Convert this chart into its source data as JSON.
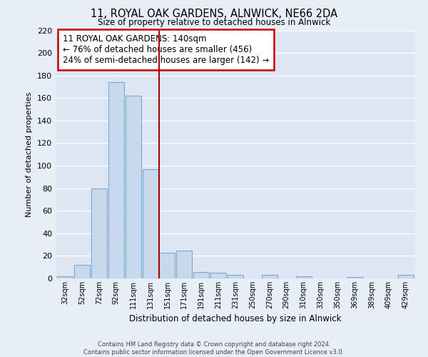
{
  "title": "11, ROYAL OAK GARDENS, ALNWICK, NE66 2DA",
  "subtitle": "Size of property relative to detached houses in Alnwick",
  "xlabel": "Distribution of detached houses by size in Alnwick",
  "ylabel": "Number of detached properties",
  "bar_labels": [
    "32sqm",
    "52sqm",
    "72sqm",
    "92sqm",
    "111sqm",
    "131sqm",
    "151sqm",
    "171sqm",
    "191sqm",
    "211sqm",
    "231sqm",
    "250sqm",
    "270sqm",
    "290sqm",
    "310sqm",
    "330sqm",
    "350sqm",
    "369sqm",
    "389sqm",
    "409sqm",
    "429sqm"
  ],
  "bar_values": [
    2,
    12,
    80,
    174,
    162,
    97,
    23,
    25,
    6,
    5,
    3,
    0,
    3,
    0,
    2,
    0,
    0,
    1,
    0,
    0,
    3
  ],
  "bar_color": "#c8d8ed",
  "bar_edge_color": "#7aaad0",
  "vline_color": "#aa0000",
  "vline_pos": 5.5,
  "ylim": [
    0,
    220
  ],
  "yticks": [
    0,
    20,
    40,
    60,
    80,
    100,
    120,
    140,
    160,
    180,
    200,
    220
  ],
  "annotation_title": "11 ROYAL OAK GARDENS: 140sqm",
  "annotation_line1": "← 76% of detached houses are smaller (456)",
  "annotation_line2": "24% of semi-detached houses are larger (142) →",
  "annotation_box_color": "#ffffff",
  "annotation_box_edge": "#cc0000",
  "footer_line1": "Contains HM Land Registry data © Crown copyright and database right 2024.",
  "footer_line2": "Contains public sector information licensed under the Open Government Licence v3.0.",
  "bg_color": "#e8eef6",
  "plot_bg_color": "#dde6f2",
  "grid_color": "#ffffff"
}
